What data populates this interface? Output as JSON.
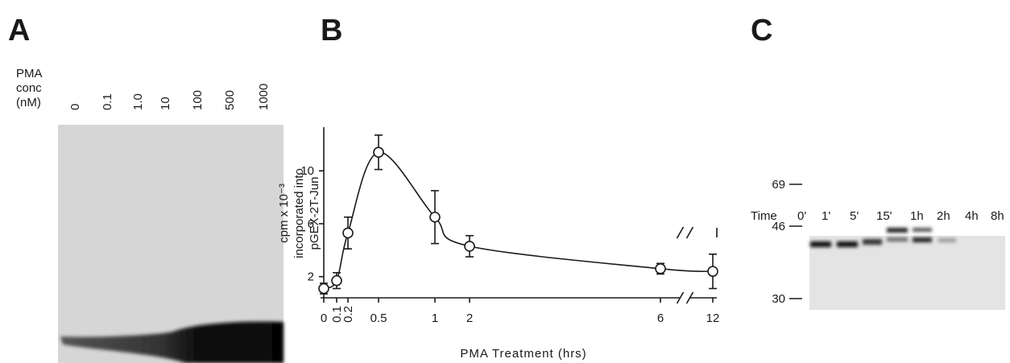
{
  "panel_a": {
    "label": "A",
    "axis_title": [
      "PMA",
      "conc",
      "(nM)"
    ],
    "lanes": [
      "0",
      "0.1",
      "1.0",
      "10",
      "100",
      "500",
      "1000"
    ]
  },
  "chart_data": {
    "type": "line",
    "label": "B",
    "x": [
      0,
      0.1,
      0.2,
      0.5,
      1,
      2,
      6,
      12
    ],
    "series": [
      {
        "color": "#1a1a1a",
        "values": [
          1.1,
          1.7,
          5.3,
          11.4,
          6.5,
          4.3,
          2.6,
          2.4
        ],
        "errors": [
          0.4,
          0.6,
          1.2,
          1.3,
          2,
          0.8,
          0.4,
          1.3
        ]
      }
    ],
    "xlim": [
      0,
      12
    ],
    "xticks": [
      0,
      0.1,
      0.2,
      0.5,
      1,
      2,
      6,
      12
    ],
    "ylim": [
      0.4,
      13.3
    ],
    "yticks": [
      2,
      6,
      10
    ],
    "xlabel": "PMA Treatment (hrs)",
    "ylabel": [
      "cpm x 10⁻³",
      "incorporated into",
      "pGEX-2T-Jun"
    ]
  },
  "panel_c": {
    "label": "C",
    "axis_title": "Time",
    "lanes": [
      "0'",
      "1'",
      "5'",
      "15'",
      "1h",
      "2h",
      "4h",
      "8h"
    ],
    "markers": [
      "69",
      "46",
      "30"
    ]
  }
}
